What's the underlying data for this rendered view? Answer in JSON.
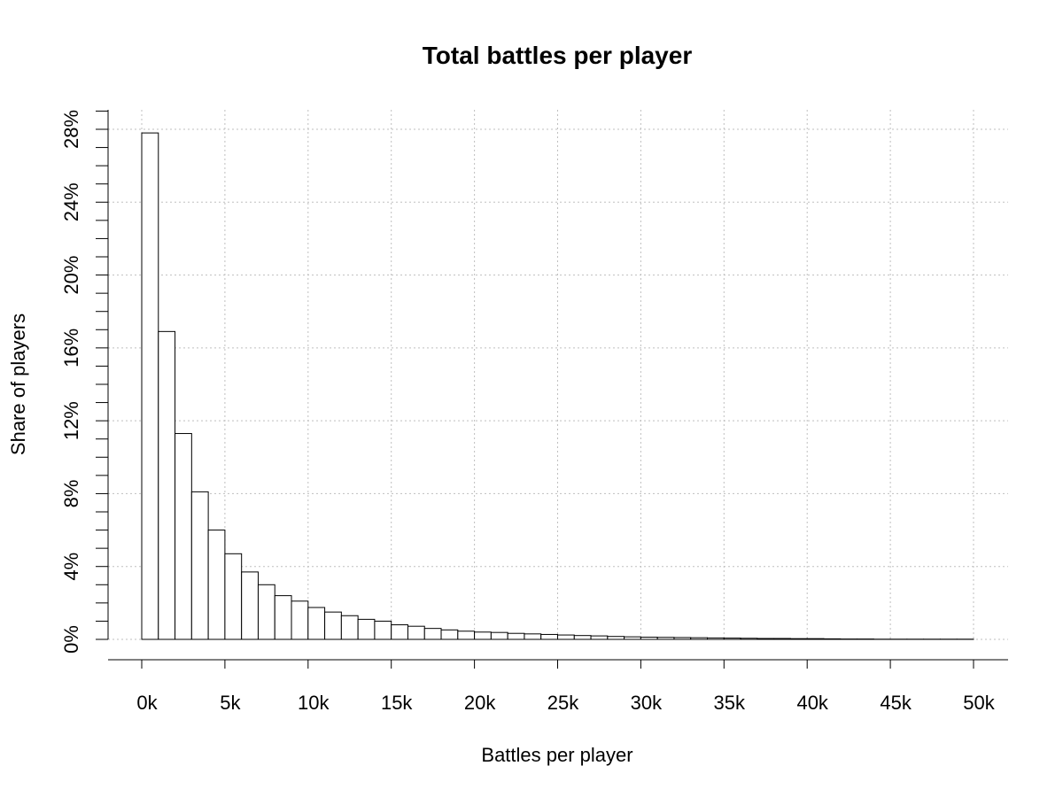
{
  "chart_data": {
    "type": "bar",
    "title": "Total battles per player",
    "xlabel": "Battles per player",
    "ylabel": "Share of players",
    "bin_width": 1000,
    "x_bin_starts": [
      0,
      1000,
      2000,
      3000,
      4000,
      5000,
      6000,
      7000,
      8000,
      9000,
      10000,
      11000,
      12000,
      13000,
      14000,
      15000,
      16000,
      17000,
      18000,
      19000,
      20000,
      21000,
      22000,
      23000,
      24000,
      25000,
      26000,
      27000,
      28000,
      29000,
      30000,
      31000,
      32000,
      33000,
      34000,
      35000,
      36000,
      37000,
      38000,
      39000,
      40000,
      41000,
      42000,
      43000,
      44000,
      45000,
      46000,
      47000,
      48000,
      49000
    ],
    "values": [
      27.8,
      16.9,
      11.3,
      8.1,
      6.0,
      4.7,
      3.7,
      3.0,
      2.4,
      2.1,
      1.75,
      1.5,
      1.3,
      1.1,
      1.0,
      0.8,
      0.72,
      0.6,
      0.52,
      0.45,
      0.4,
      0.38,
      0.33,
      0.3,
      0.27,
      0.24,
      0.21,
      0.19,
      0.16,
      0.14,
      0.12,
      0.11,
      0.1,
      0.09,
      0.08,
      0.07,
      0.06,
      0.05,
      0.05,
      0.04,
      0.04,
      0.03,
      0.02,
      0.02,
      0.01,
      0.01,
      0.01,
      0.01,
      0.01,
      0.01
    ],
    "xlim": [
      0,
      50000
    ],
    "ylim": [
      0,
      28
    ],
    "x_ticks": [
      0,
      5000,
      10000,
      15000,
      20000,
      25000,
      30000,
      35000,
      40000,
      45000,
      50000
    ],
    "x_tick_labels": [
      "0k",
      "5k",
      "10k",
      "15k",
      "20k",
      "25k",
      "30k",
      "35k",
      "40k",
      "45k",
      "50k"
    ],
    "y_ticks": [
      0,
      4,
      8,
      12,
      16,
      20,
      24,
      28
    ],
    "y_tick_labels": [
      "0%",
      "4%",
      "8%",
      "12%",
      "16%",
      "20%",
      "24%",
      "28%"
    ],
    "y_minor_step": 1,
    "grid": true,
    "bar_color": "#ffffff",
    "edge_color": "#000000",
    "grid_color": "#bfbfbf"
  }
}
